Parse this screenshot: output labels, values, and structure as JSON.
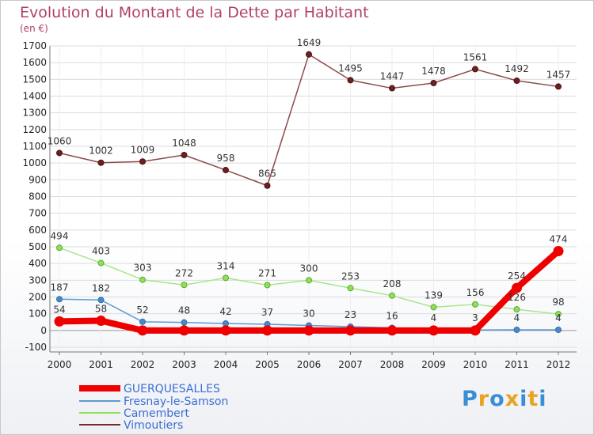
{
  "title": "Evolution du Montant de la Dette par Habitant",
  "subtitle": "(en €)",
  "logo": {
    "text": "Proxiti",
    "colors": [
      "#3a8fd4",
      "#e8a323",
      "#3a8fd4",
      "#e8a323",
      "#3a8fd4",
      "#e8a323",
      "#3a8fd4"
    ]
  },
  "chart_data": {
    "type": "line",
    "title": "Evolution du Montant de la Dette par Habitant",
    "ylabel": "(en €)",
    "xlabel": "",
    "x": [
      "2000",
      "2001",
      "2002",
      "2003",
      "2004",
      "2005",
      "2006",
      "2007",
      "2008",
      "2009",
      "2010",
      "2011",
      "2012"
    ],
    "ylim": [
      -100,
      1700
    ],
    "yticks": [
      -100,
      0,
      100,
      200,
      300,
      400,
      500,
      600,
      700,
      800,
      900,
      1000,
      1100,
      1200,
      1300,
      1400,
      1500,
      1600,
      1700
    ],
    "grid": true,
    "legend_position": "bottom-left",
    "series": [
      {
        "name": "GUERQUESALLES",
        "color": "#ee0000",
        "values": [
          54,
          58,
          0,
          0,
          0,
          0,
          0,
          0,
          0,
          0,
          0,
          254,
          474
        ],
        "labels": [
          "54",
          "58",
          "0",
          "0",
          "0",
          "0",
          "0",
          "0",
          "0",
          "0",
          "0",
          "254",
          "474"
        ],
        "show_labels": [
          true,
          true,
          false,
          false,
          false,
          false,
          false,
          false,
          false,
          false,
          false,
          true,
          true
        ]
      },
      {
        "name": "Fresnay-le-Samson",
        "color": "#5b9bd5",
        "values": [
          187,
          182,
          52,
          48,
          42,
          37,
          30,
          23,
          16,
          4,
          3,
          4,
          4
        ],
        "labels": [
          "187",
          "182",
          "52",
          "48",
          "42",
          "37",
          "30",
          "23",
          "16",
          "4",
          "3",
          "4",
          "4"
        ]
      },
      {
        "name": "Camembert",
        "color": "#8ee05a",
        "values": [
          494,
          403,
          303,
          272,
          314,
          271,
          300,
          253,
          208,
          139,
          156,
          126,
          98
        ],
        "labels": [
          "494",
          "403",
          "303",
          "272",
          "314",
          "271",
          "300",
          "253",
          "208",
          "139",
          "156",
          "126",
          "98"
        ]
      },
      {
        "name": "Vimoutiers",
        "color": "#7a2a2a",
        "values": [
          1060,
          1002,
          1009,
          1048,
          958,
          865,
          1649,
          1495,
          1447,
          1478,
          1561,
          1492,
          1457
        ],
        "labels": [
          "1060",
          "1002",
          "1009",
          "1048",
          "958",
          "865",
          "1649",
          "1495",
          "1447",
          "1478",
          "1561",
          "1492",
          "1457"
        ]
      }
    ],
    "overlap_labels": [
      "0",
      "0",
      "2",
      "2",
      "3",
      "3",
      "3",
      "3",
      "4",
      "4"
    ]
  }
}
